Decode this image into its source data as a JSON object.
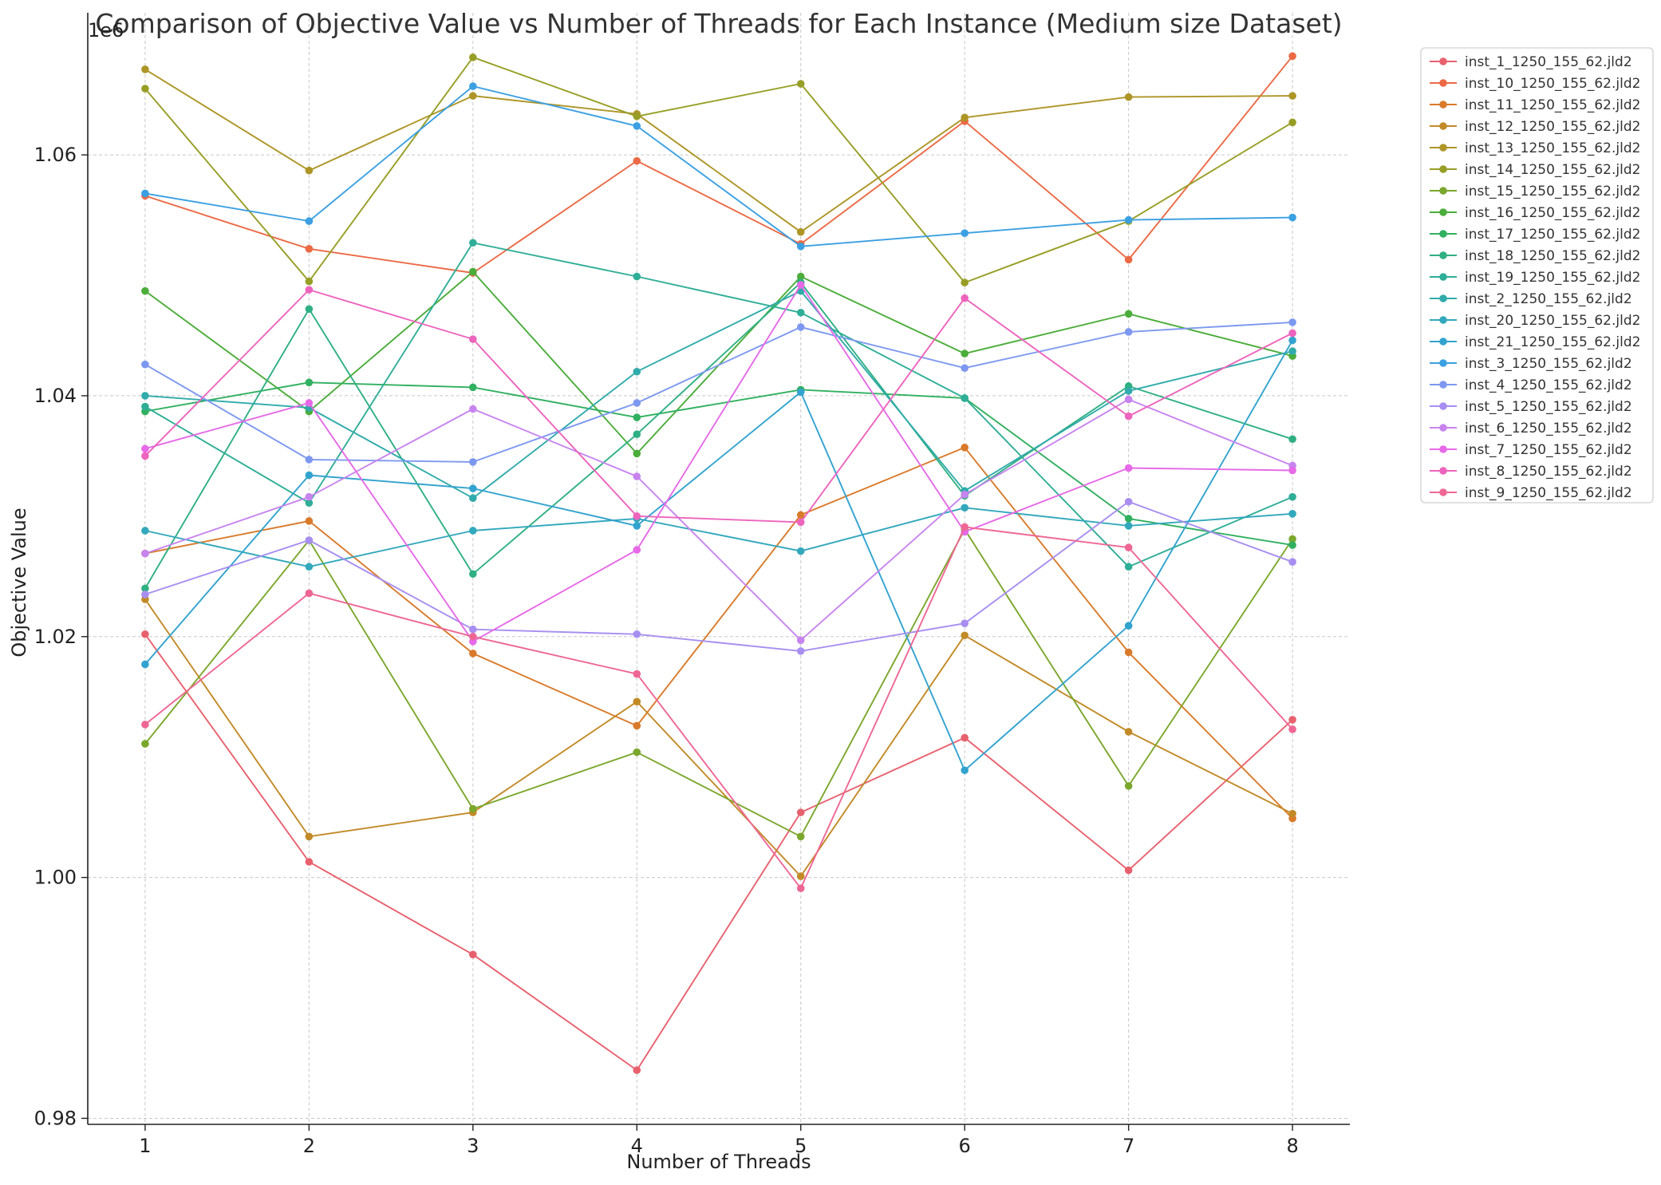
{
  "chart_data": {
    "type": "line",
    "title": "Comparison of Objective Value vs Number of Threads for Each Instance (Medium size Dataset)",
    "xlabel": "Number of Threads",
    "ylabel": "Objective Value",
    "y_offset_label": "1e6",
    "x": [
      1,
      2,
      3,
      4,
      5,
      6,
      7,
      8
    ],
    "xlim": [
      0.65,
      8.35
    ],
    "ylim": [
      0.9795,
      1.0718
    ],
    "yticks": [
      0.98,
      1.0,
      1.02,
      1.04,
      1.06
    ],
    "ytick_labels": [
      "0.98",
      "1.00",
      "1.02",
      "1.04",
      "1.06"
    ],
    "xtick_labels": [
      "1",
      "2",
      "3",
      "4",
      "5",
      "6",
      "7",
      "8"
    ],
    "grid": true,
    "legend_position": "outside-top-right",
    "series": [
      {
        "name": "inst_1_1250_155_62.jld2",
        "color": "#e8616e",
        "values": [
          1.0202,
          1.0013,
          0.9936,
          0.984,
          1.0054,
          1.0116,
          1.0006,
          1.0131
        ]
      },
      {
        "name": "inst_10_1250_155_62.jld2",
        "color": "#eb6a45",
        "values": [
          1.0566,
          1.0522,
          1.0502,
          1.0595,
          1.0526,
          1.0628,
          1.0513,
          1.0682
        ]
      },
      {
        "name": "inst_11_1250_155_62.jld2",
        "color": "#d97a2a",
        "values": [
          1.0269,
          1.0296,
          1.0186,
          1.0126,
          1.0301,
          1.0357,
          1.0187,
          1.0049
        ]
      },
      {
        "name": "inst_12_1250_155_62.jld2",
        "color": "#c28a27",
        "values": [
          1.0231,
          1.0034,
          1.0054,
          1.0146,
          1.0001,
          1.0201,
          1.0121,
          1.0053
        ]
      },
      {
        "name": "inst_13_1250_155_62.jld2",
        "color": "#ad9526",
        "values": [
          1.0671,
          1.0587,
          1.0649,
          1.0634,
          1.0536,
          1.0631,
          1.0648,
          1.0649
        ]
      },
      {
        "name": "inst_14_1250_155_62.jld2",
        "color": "#979e25",
        "values": [
          1.0655,
          1.0495,
          1.0681,
          1.0632,
          1.0659,
          1.0494,
          1.0545,
          1.0627
        ]
      },
      {
        "name": "inst_15_1250_155_62.jld2",
        "color": "#7ba72c",
        "values": [
          1.0111,
          1.028,
          1.0057,
          1.0104,
          1.0034,
          1.0289,
          1.0076,
          1.0281
        ]
      },
      {
        "name": "inst_16_1250_155_62.jld2",
        "color": "#4bad3a",
        "values": [
          1.0487,
          1.0387,
          1.0503,
          1.0352,
          1.0499,
          1.0435,
          1.0468,
          1.0433
        ]
      },
      {
        "name": "inst_17_1250_155_62.jld2",
        "color": "#31b060",
        "values": [
          1.0387,
          1.0411,
          1.0407,
          1.0382,
          1.0405,
          1.0398,
          1.0298,
          1.0276
        ]
      },
      {
        "name": "inst_18_1250_155_62.jld2",
        "color": "#2fb083",
        "values": [
          1.024,
          1.0472,
          1.0252,
          1.0368,
          1.0494,
          1.0317,
          1.0408,
          1.0364
        ]
      },
      {
        "name": "inst_19_1250_155_62.jld2",
        "color": "#2fae97",
        "values": [
          1.0391,
          1.0311,
          1.0527,
          1.0499,
          1.0469,
          1.0398,
          1.0258,
          1.0316
        ]
      },
      {
        "name": "inst_2_1250_155_62.jld2",
        "color": "#31abab",
        "values": [
          1.04,
          1.039,
          1.0315,
          1.042,
          1.0487,
          1.0321,
          1.0404,
          1.0437
        ]
      },
      {
        "name": "inst_20_1250_155_62.jld2",
        "color": "#32a8bc",
        "values": [
          1.0288,
          1.0258,
          1.0288,
          1.0298,
          1.0271,
          1.0307,
          1.0292,
          1.0302
        ]
      },
      {
        "name": "inst_21_1250_155_62.jld2",
        "color": "#32a3cf",
        "values": [
          1.0177,
          1.0334,
          1.0323,
          1.0292,
          1.0403,
          1.0089,
          1.0209,
          1.0446
        ]
      },
      {
        "name": "inst_3_1250_155_62.jld2",
        "color": "#3ba0e2",
        "values": [
          1.0568,
          1.0545,
          1.0657,
          1.0624,
          1.0524,
          1.0535,
          1.0546,
          1.0548
        ]
      },
      {
        "name": "inst_4_1250_155_62.jld2",
        "color": "#7d98f0",
        "values": [
          1.0426,
          1.0347,
          1.0345,
          1.0394,
          1.0457,
          1.0423,
          1.0453,
          1.0461
        ]
      },
      {
        "name": "inst_5_1250_155_62.jld2",
        "color": "#a88ef1",
        "values": [
          1.0235,
          1.028,
          1.0206,
          1.0202,
          1.0188,
          1.0211,
          1.0312,
          1.0262
        ]
      },
      {
        "name": "inst_6_1250_155_62.jld2",
        "color": "#c784ef",
        "values": [
          1.0269,
          1.0316,
          1.0389,
          1.0333,
          1.0197,
          1.0318,
          1.0397,
          1.0342
        ]
      },
      {
        "name": "inst_7_1250_155_62.jld2",
        "color": "#e669e7",
        "values": [
          1.0356,
          1.0394,
          1.0196,
          1.0272,
          1.0492,
          1.0287,
          1.034,
          1.0338
        ]
      },
      {
        "name": "inst_8_1250_155_62.jld2",
        "color": "#ed64bd",
        "values": [
          1.035,
          1.0488,
          1.0447,
          1.03,
          1.0295,
          1.0481,
          1.0383,
          1.0452
        ]
      },
      {
        "name": "inst_9_1250_155_62.jld2",
        "color": "#ee6794",
        "values": [
          1.0127,
          1.0236,
          1.02,
          1.0169,
          0.9991,
          1.0291,
          1.0274,
          1.0123
        ]
      }
    ]
  }
}
